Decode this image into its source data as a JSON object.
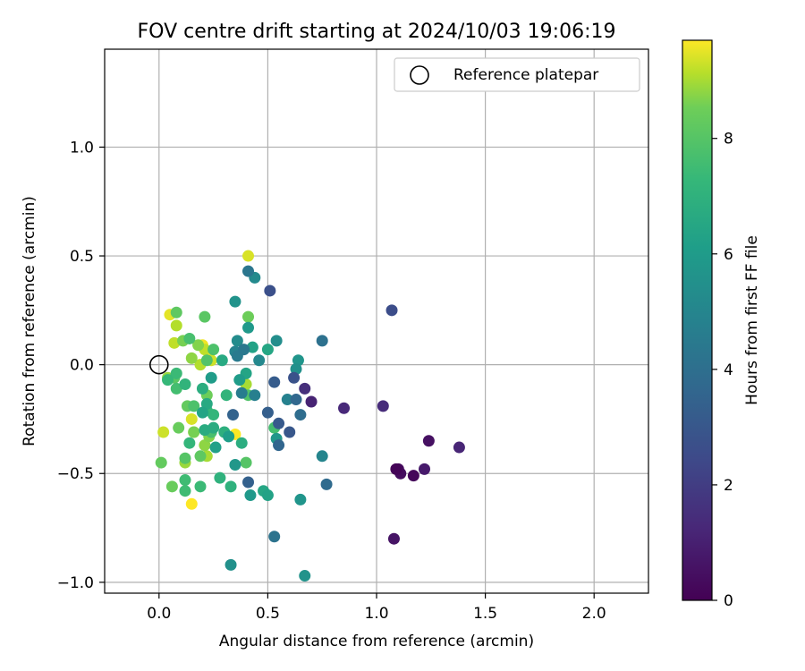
{
  "chart_data": {
    "type": "scatter",
    "title": "FOV centre drift starting at 2024/10/03 19:06:19",
    "xlabel": "Angular distance from reference (arcmin)",
    "ylabel": "Rotation from reference (arcmin)",
    "xlim": [
      -0.25,
      2.25
    ],
    "ylim": [
      -1.05,
      1.45
    ],
    "xticks": [
      0.0,
      0.5,
      1.0,
      1.5,
      2.0
    ],
    "xtick_labels": [
      "0.0",
      "0.5",
      "1.0",
      "1.5",
      "2.0"
    ],
    "yticks": [
      -1.0,
      -0.5,
      0.0,
      0.5,
      1.0
    ],
    "ytick_labels": [
      "−1.0",
      "−0.5",
      "0.0",
      "0.5",
      "1.0"
    ],
    "grid": true,
    "legend": {
      "placement": "top-right",
      "label": "Reference platepar"
    },
    "reference_point": {
      "x": 0.0,
      "y": 0.0
    },
    "colorbar": {
      "label": "Hours from first FF file",
      "colormap": "viridis",
      "range": [
        0,
        9.7
      ],
      "ticks": [
        0,
        2,
        4,
        6,
        8
      ],
      "tick_labels": [
        "0",
        "2",
        "4",
        "6",
        "8"
      ]
    },
    "series": [
      {
        "points": [
          {
            "x": 1.09,
            "y": -0.48,
            "c": 0.1
          },
          {
            "x": 1.17,
            "y": -0.51,
            "c": 0.2
          },
          {
            "x": 1.1,
            "y": -0.48,
            "c": 0.3
          },
          {
            "x": 1.11,
            "y": -0.5,
            "c": 0.4
          },
          {
            "x": 1.08,
            "y": -0.8,
            "c": 0.6
          },
          {
            "x": 1.22,
            "y": -0.48,
            "c": 0.8
          },
          {
            "x": 1.24,
            "y": -0.35,
            "c": 0.5
          },
          {
            "x": 1.38,
            "y": -0.38,
            "c": 1.2
          },
          {
            "x": 1.03,
            "y": -0.19,
            "c": 1.4
          },
          {
            "x": 0.85,
            "y": -0.2,
            "c": 1.3
          },
          {
            "x": 0.7,
            "y": -0.17,
            "c": 1.1
          },
          {
            "x": 0.67,
            "y": -0.11,
            "c": 1.5
          },
          {
            "x": 1.07,
            "y": 0.25,
            "c": 2.6
          },
          {
            "x": 0.51,
            "y": 0.34,
            "c": 2.7
          },
          {
            "x": 0.62,
            "y": -0.06,
            "c": 2.8
          },
          {
            "x": 0.6,
            "y": -0.31,
            "c": 3.0
          },
          {
            "x": 0.55,
            "y": -0.27,
            "c": 3.1
          },
          {
            "x": 0.53,
            "y": -0.08,
            "c": 3.2
          },
          {
            "x": 0.5,
            "y": -0.22,
            "c": 3.3
          },
          {
            "x": 0.41,
            "y": -0.54,
            "c": 3.4
          },
          {
            "x": 0.34,
            "y": -0.23,
            "c": 3.5
          },
          {
            "x": 0.55,
            "y": -0.37,
            "c": 3.6
          },
          {
            "x": 0.63,
            "y": -0.16,
            "c": 3.7
          },
          {
            "x": 0.77,
            "y": -0.55,
            "c": 3.8
          },
          {
            "x": 0.65,
            "y": -0.23,
            "c": 3.9
          },
          {
            "x": 0.75,
            "y": 0.11,
            "c": 4.1
          },
          {
            "x": 0.53,
            "y": -0.79,
            "c": 4.2
          },
          {
            "x": 0.41,
            "y": 0.43,
            "c": 4.3
          },
          {
            "x": 0.39,
            "y": 0.07,
            "c": 4.4
          },
          {
            "x": 0.36,
            "y": 0.04,
            "c": 4.5
          },
          {
            "x": 0.38,
            "y": -0.13,
            "c": 4.6
          },
          {
            "x": 0.44,
            "y": -0.14,
            "c": 4.7
          },
          {
            "x": 0.59,
            "y": -0.16,
            "c": 4.8
          },
          {
            "x": 0.35,
            "y": 0.06,
            "c": 4.9
          },
          {
            "x": 0.75,
            "y": -0.42,
            "c": 5.0
          },
          {
            "x": 0.46,
            "y": 0.02,
            "c": 5.1
          },
          {
            "x": 0.44,
            "y": 0.4,
            "c": 5.2
          },
          {
            "x": 0.36,
            "y": 0.11,
            "c": 5.3
          },
          {
            "x": 0.54,
            "y": 0.11,
            "c": 5.4
          },
          {
            "x": 0.63,
            "y": -0.02,
            "c": 5.5
          },
          {
            "x": 0.35,
            "y": 0.29,
            "c": 5.6
          },
          {
            "x": 0.33,
            "y": -0.92,
            "c": 5.5
          },
          {
            "x": 0.67,
            "y": -0.97,
            "c": 5.6
          },
          {
            "x": 0.65,
            "y": -0.62,
            "c": 5.7
          },
          {
            "x": 0.35,
            "y": -0.46,
            "c": 5.8
          },
          {
            "x": 0.42,
            "y": -0.6,
            "c": 5.9
          },
          {
            "x": 0.64,
            "y": 0.02,
            "c": 5.7
          },
          {
            "x": 0.54,
            "y": -0.34,
            "c": 5.8
          },
          {
            "x": 0.41,
            "y": 0.17,
            "c": 5.9
          },
          {
            "x": 0.37,
            "y": -0.07,
            "c": 6.0
          },
          {
            "x": 0.24,
            "y": -0.06,
            "c": 6.0
          },
          {
            "x": 0.32,
            "y": -0.33,
            "c": 6.1
          },
          {
            "x": 0.26,
            "y": -0.38,
            "c": 6.2
          },
          {
            "x": 0.5,
            "y": -0.6,
            "c": 6.3
          },
          {
            "x": 0.43,
            "y": 0.08,
            "c": 6.3
          },
          {
            "x": 0.4,
            "y": -0.04,
            "c": 6.4
          },
          {
            "x": 0.2,
            "y": -0.22,
            "c": 6.4
          },
          {
            "x": 0.48,
            "y": -0.58,
            "c": 6.5
          },
          {
            "x": 0.5,
            "y": 0.07,
            "c": 6.5
          },
          {
            "x": 0.22,
            "y": -0.18,
            "c": 6.6
          },
          {
            "x": 0.29,
            "y": 0.02,
            "c": 6.6
          },
          {
            "x": 0.21,
            "y": -0.3,
            "c": 6.7
          },
          {
            "x": 0.25,
            "y": -0.29,
            "c": 6.7
          },
          {
            "x": 0.2,
            "y": -0.11,
            "c": 6.8
          },
          {
            "x": 0.38,
            "y": -0.36,
            "c": 6.8
          },
          {
            "x": 0.3,
            "y": -0.31,
            "c": 6.9
          },
          {
            "x": 0.33,
            "y": -0.56,
            "c": 7.0
          },
          {
            "x": 0.28,
            "y": -0.52,
            "c": 7.0
          },
          {
            "x": 0.31,
            "y": -0.14,
            "c": 7.1
          },
          {
            "x": 0.12,
            "y": -0.09,
            "c": 7.1
          },
          {
            "x": 0.25,
            "y": -0.23,
            "c": 7.2
          },
          {
            "x": 0.14,
            "y": -0.36,
            "c": 7.2
          },
          {
            "x": 0.22,
            "y": -0.21,
            "c": 7.3
          },
          {
            "x": 0.04,
            "y": -0.07,
            "c": 7.3
          },
          {
            "x": 0.08,
            "y": -0.04,
            "c": 7.4
          },
          {
            "x": 0.19,
            "y": -0.56,
            "c": 7.4
          },
          {
            "x": 0.12,
            "y": -0.58,
            "c": 7.5
          },
          {
            "x": 0.12,
            "y": -0.53,
            "c": 7.5
          },
          {
            "x": 0.53,
            "y": -0.29,
            "c": 7.6
          },
          {
            "x": 0.08,
            "y": -0.11,
            "c": 7.6
          },
          {
            "x": 0.14,
            "y": 0.12,
            "c": 7.7
          },
          {
            "x": 0.24,
            "y": -0.31,
            "c": 7.7
          },
          {
            "x": 0.25,
            "y": 0.07,
            "c": 7.8
          },
          {
            "x": 0.16,
            "y": -0.19,
            "c": 7.8
          },
          {
            "x": 0.22,
            "y": 0.02,
            "c": 7.9
          },
          {
            "x": 0.41,
            "y": -0.14,
            "c": 7.9
          },
          {
            "x": 0.12,
            "y": -0.43,
            "c": 8.0
          },
          {
            "x": 0.4,
            "y": -0.45,
            "c": 8.0
          },
          {
            "x": 0.07,
            "y": -0.06,
            "c": 8.1
          },
          {
            "x": 0.21,
            "y": 0.22,
            "c": 8.1
          },
          {
            "x": 0.08,
            "y": 0.24,
            "c": 8.2
          },
          {
            "x": 0.19,
            "y": -0.42,
            "c": 8.2
          },
          {
            "x": 0.13,
            "y": -0.19,
            "c": 8.3
          },
          {
            "x": 0.01,
            "y": -0.45,
            "c": 8.3
          },
          {
            "x": 0.06,
            "y": -0.56,
            "c": 8.4
          },
          {
            "x": 0.09,
            "y": -0.29,
            "c": 8.4
          },
          {
            "x": 0.41,
            "y": 0.22,
            "c": 8.5
          },
          {
            "x": 0.22,
            "y": -0.14,
            "c": 8.5
          },
          {
            "x": 0.16,
            "y": -0.31,
            "c": 8.6
          },
          {
            "x": 0.11,
            "y": 0.11,
            "c": 8.6
          },
          {
            "x": 0.18,
            "y": 0.09,
            "c": 8.7
          },
          {
            "x": 0.23,
            "y": -0.33,
            "c": 8.7
          },
          {
            "x": 0.21,
            "y": -0.37,
            "c": 8.8
          },
          {
            "x": 0.15,
            "y": 0.03,
            "c": 8.8
          },
          {
            "x": 0.04,
            "y": -0.06,
            "c": 8.9
          },
          {
            "x": 0.12,
            "y": -0.45,
            "c": 8.9
          },
          {
            "x": 0.22,
            "y": -0.42,
            "c": 9.0
          },
          {
            "x": 0.4,
            "y": -0.09,
            "c": 9.0
          },
          {
            "x": 0.19,
            "y": 0.0,
            "c": 9.1
          },
          {
            "x": 0.08,
            "y": 0.18,
            "c": 9.1
          },
          {
            "x": 0.21,
            "y": 0.07,
            "c": 9.2
          },
          {
            "x": 0.07,
            "y": 0.1,
            "c": 9.2
          },
          {
            "x": 0.24,
            "y": 0.02,
            "c": 9.3
          },
          {
            "x": 0.02,
            "y": -0.31,
            "c": 9.3
          },
          {
            "x": 0.41,
            "y": 0.5,
            "c": 9.4
          },
          {
            "x": 0.15,
            "y": -0.25,
            "c": 9.4
          },
          {
            "x": 0.16,
            "y": -0.31,
            "c": 9.5
          },
          {
            "x": 0.05,
            "y": 0.23,
            "c": 9.5
          },
          {
            "x": 0.2,
            "y": 0.09,
            "c": 9.6
          },
          {
            "x": 0.23,
            "y": 0.05,
            "c": 9.6
          },
          {
            "x": 0.15,
            "y": -0.64,
            "c": 9.7
          },
          {
            "x": 0.35,
            "y": -0.32,
            "c": 9.7
          }
        ]
      }
    ]
  }
}
